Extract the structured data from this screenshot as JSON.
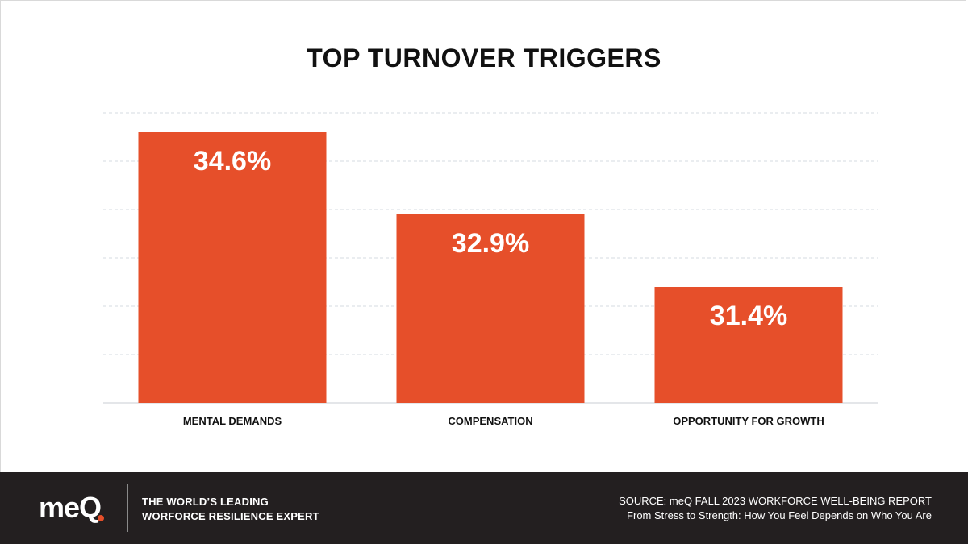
{
  "chart_data": {
    "type": "bar",
    "title": "TOP TURNOVER TRIGGERS",
    "categories": [
      "MENTAL DEMANDS",
      "COMPENSATION",
      "OPPORTUNITY FOR GROWTH"
    ],
    "values": [
      34.6,
      32.9,
      31.4
    ],
    "value_labels": [
      "34.6%",
      "32.9%",
      "31.4%"
    ],
    "xlabel": "",
    "ylabel": "",
    "ylim": [
      29,
      35
    ],
    "grid": true,
    "bar_color": "#e64f2a"
  },
  "footer": {
    "logo_text": "meQ",
    "tagline": [
      "THE WORLD’S LEADING",
      "WORFORCE RESILIENCE EXPERT"
    ],
    "source_line1": "SOURCE: meQ FALL 2023 WORKFORCE WELL-BEING REPORT",
    "source_line2": "From Stress to Strength: How You Feel Depends on Who You Are",
    "background": "#231f20"
  }
}
